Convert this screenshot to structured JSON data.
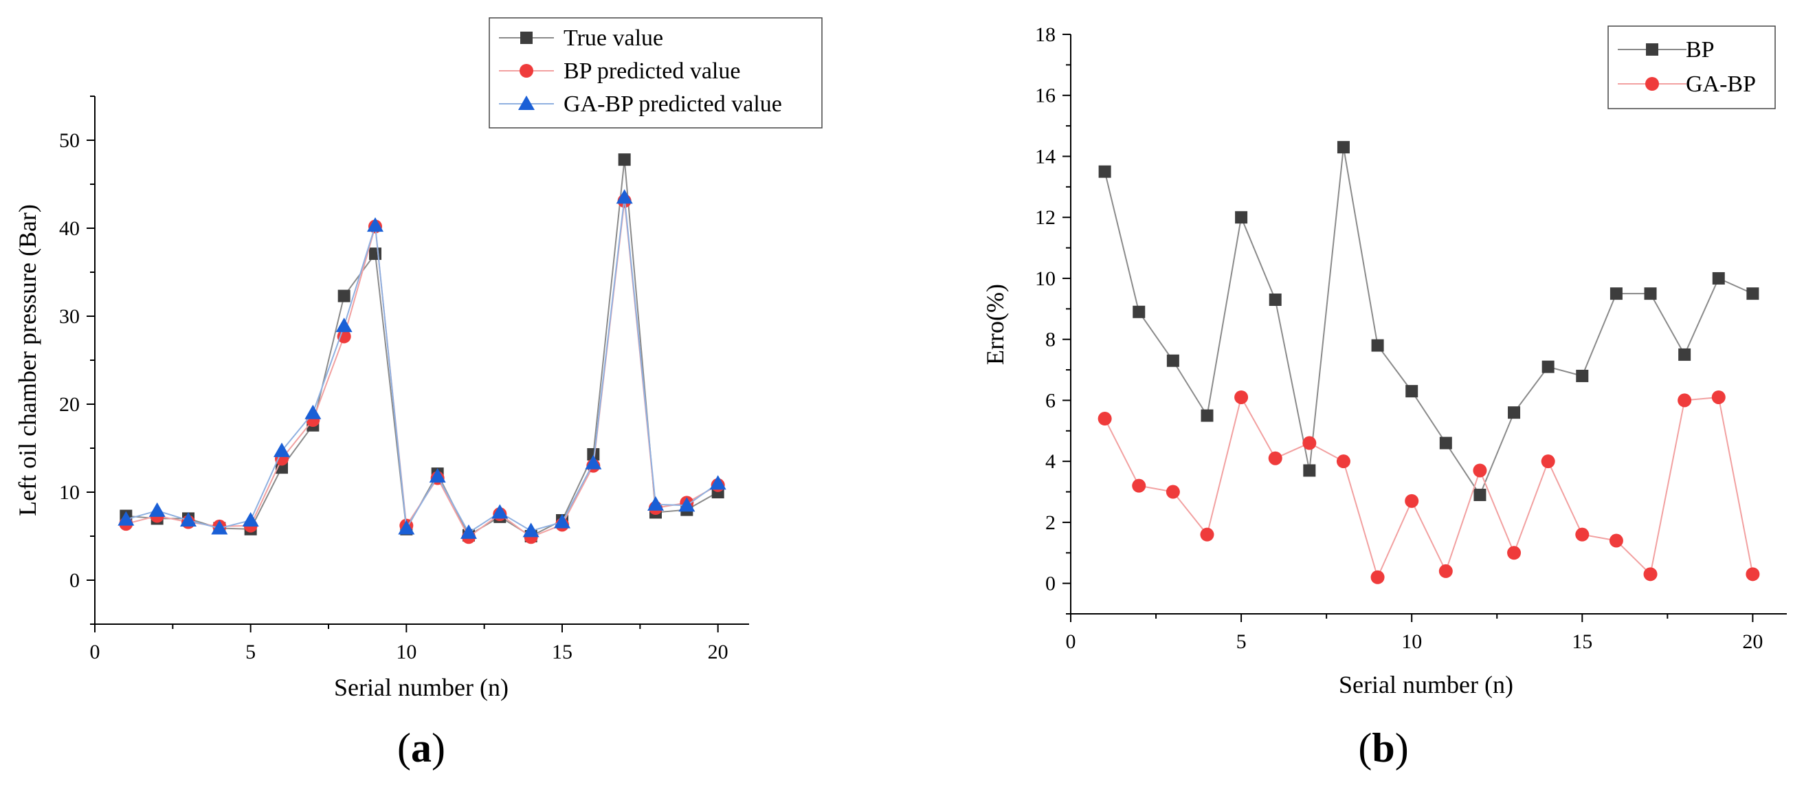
{
  "chart_data": [
    {
      "type": "line",
      "panel_label": "(a)",
      "panel_letter": "a",
      "xlabel": "Serial number (n)",
      "ylabel": "Left oil chamber pressure (Bar)",
      "xlim": [
        0,
        21
      ],
      "ylim": [
        -5,
        55
      ],
      "xticks": [
        0,
        5,
        10,
        15,
        20
      ],
      "yticks": [
        0,
        10,
        20,
        30,
        40,
        50
      ],
      "legend_position": "top-right",
      "x": [
        1,
        2,
        3,
        4,
        5,
        6,
        7,
        8,
        9,
        10,
        11,
        12,
        13,
        14,
        15,
        16,
        17,
        18,
        19,
        20
      ],
      "series": [
        {
          "name": "True value",
          "marker": "square",
          "color": "#3d3d3d",
          "line_color": "#8a8a8a",
          "values": [
            7.3,
            7.0,
            7.0,
            5.9,
            5.8,
            12.8,
            17.6,
            32.3,
            37.1,
            5.8,
            12.1,
            5.1,
            7.2,
            5.0,
            6.8,
            14.3,
            47.8,
            7.7,
            8.0,
            10.0
          ]
        },
        {
          "name": "BP predicted value",
          "marker": "circle",
          "color": "#ef3b3b",
          "line_color": "#f2a0a0",
          "values": [
            6.4,
            7.3,
            6.6,
            6.1,
            6.2,
            13.8,
            18.2,
            27.7,
            40.2,
            6.2,
            11.6,
            4.9,
            7.5,
            4.9,
            6.3,
            13.0,
            43.1,
            8.2,
            8.8,
            10.8
          ]
        },
        {
          "name": "GA-BP predicted value",
          "marker": "triangle",
          "color": "#1a5fd6",
          "line_color": "#8fb0e0",
          "values": [
            6.9,
            7.9,
            6.8,
            5.9,
            6.8,
            14.7,
            19.0,
            28.9,
            40.3,
            5.9,
            11.8,
            5.4,
            7.7,
            5.6,
            6.6,
            13.3,
            43.5,
            8.6,
            8.5,
            11.0
          ]
        }
      ]
    },
    {
      "type": "line",
      "panel_label": "(b)",
      "panel_letter": "b",
      "xlabel": "Serial number (n)",
      "ylabel": "Erro(%)",
      "xlim": [
        0,
        21
      ],
      "ylim": [
        -1,
        18
      ],
      "xticks": [
        0,
        5,
        10,
        15,
        20
      ],
      "yticks": [
        0,
        2,
        4,
        6,
        8,
        10,
        12,
        14,
        16,
        18
      ],
      "legend_position": "top-right",
      "x": [
        1,
        2,
        3,
        4,
        5,
        6,
        7,
        8,
        9,
        10,
        11,
        12,
        13,
        14,
        15,
        16,
        17,
        18,
        19,
        20
      ],
      "series": [
        {
          "name": "BP",
          "marker": "square",
          "color": "#3d3d3d",
          "line_color": "#8a8a8a",
          "values": [
            13.5,
            8.9,
            7.3,
            5.5,
            12.0,
            9.3,
            3.7,
            14.3,
            7.8,
            6.3,
            4.6,
            2.9,
            5.6,
            7.1,
            6.8,
            9.5,
            9.5,
            7.5,
            10.0,
            9.5
          ]
        },
        {
          "name": "GA-BP",
          "marker": "circle",
          "color": "#ef3b3b",
          "line_color": "#f2a0a0",
          "values": [
            5.4,
            3.2,
            3.0,
            1.6,
            6.1,
            4.1,
            4.6,
            4.0,
            0.2,
            2.7,
            0.4,
            3.7,
            1.0,
            4.0,
            1.6,
            1.4,
            0.3,
            6.0,
            6.1,
            0.3
          ]
        }
      ]
    }
  ]
}
